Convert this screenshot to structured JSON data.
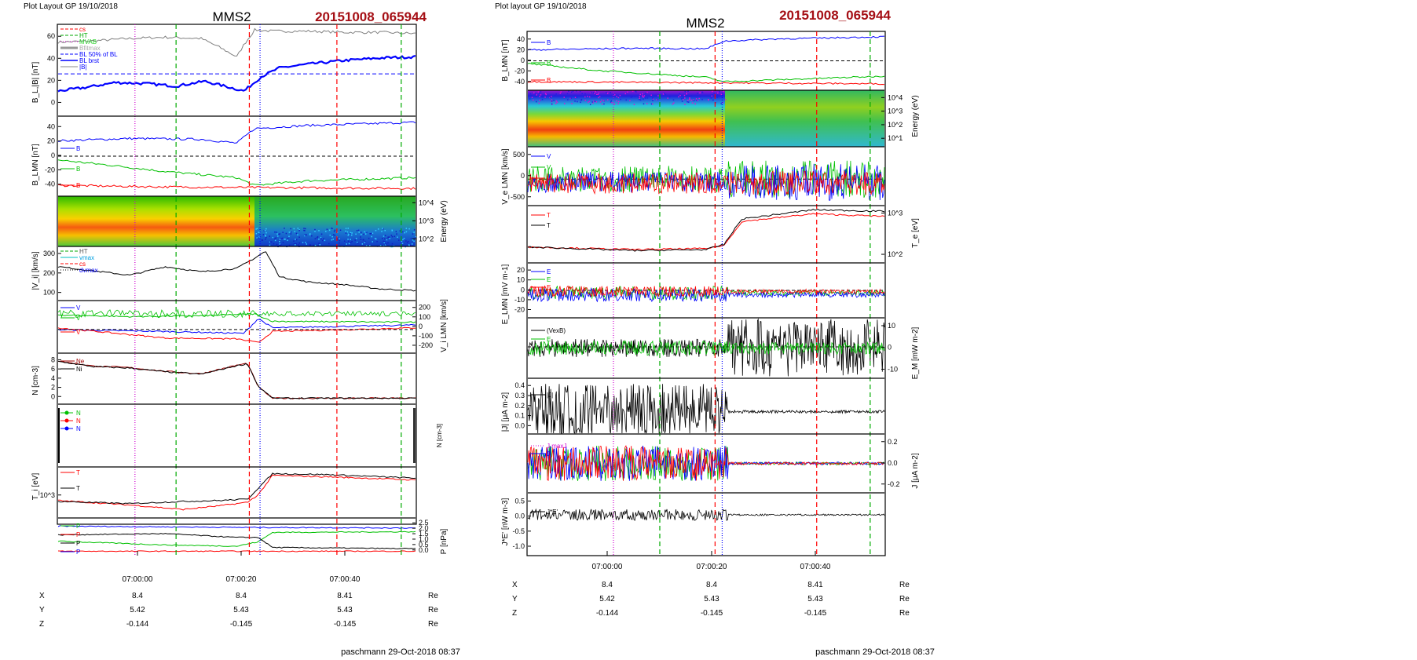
{
  "left_figure": {
    "header": "Plot Layout GP 19/10/2018",
    "spacecraft": "MMS2",
    "event_id": "20151008_065944",
    "footer": "paschmann 29-Oct-2018 08:37"
  },
  "right_figure": {
    "header": "Plot layout GP 19/10/2018",
    "spacecraft": "MMS2",
    "event_id": "20151008_065944",
    "footer": "paschmann 29-Oct-2018 08:37"
  },
  "colors": {
    "event_id": "#a50f15",
    "BL": "#0000ff",
    "BM": "#00c000",
    "BN": "#ff0000",
    "vlines": {
      "cs": "#ff0000",
      "HT": "#00aa00",
      "MVAB": "#d000d0",
      "blue": "#0000ff",
      "grey": "#999999"
    }
  },
  "time_axis": {
    "ticks": [
      "07:00:00",
      "07:00:20",
      "07:00:40"
    ]
  },
  "ephemeris": {
    "left": {
      "rows": [
        {
          "label": "X",
          "values": [
            "8.4",
            "8.4",
            "8.41"
          ],
          "unit": "Re"
        },
        {
          "label": "Y",
          "values": [
            "5.42",
            "5.43",
            "5.43"
          ],
          "unit": "Re"
        },
        {
          "label": "Z",
          "values": [
            "-0.144",
            "-0.145",
            "-0.145"
          ],
          "unit": "Re"
        }
      ]
    },
    "right": {
      "rows": [
        {
          "label": "X",
          "values": [
            "8.4",
            "8.4",
            "8.41"
          ],
          "unit": "Re"
        },
        {
          "label": "Y",
          "values": [
            "5.42",
            "5.43",
            "5.43"
          ],
          "unit": "Re"
        },
        {
          "label": "Z",
          "values": [
            "-0.144",
            "-0.145",
            "-0.145"
          ],
          "unit": "Re"
        }
      ]
    }
  },
  "chart_data": [
    {
      "figure": "left",
      "panel": "B_L |B|",
      "type": "line",
      "ylabel": "B_L,|B| [nT]",
      "yticks": [
        "0",
        "20",
        "40",
        "60"
      ],
      "ylim": [
        -2,
        68
      ],
      "legend": [
        "cs",
        "HT",
        "MVAB",
        "Bfitmax",
        "B_L 50% of BL",
        "BL brst",
        "|B|"
      ],
      "series": [
        {
          "name": "|B|",
          "color": "#808080",
          "x": [
            0,
            0.1,
            0.2,
            0.3,
            0.4,
            0.45,
            0.5,
            0.52,
            0.55,
            0.6,
            0.7,
            0.8,
            0.9,
            1.0
          ],
          "y": [
            56,
            57,
            59,
            60,
            59,
            52,
            44,
            54,
            66,
            65,
            65,
            64,
            64,
            63
          ]
        },
        {
          "name": "BL brst",
          "color": "#0000ff",
          "x": [
            0,
            0.08,
            0.16,
            0.25,
            0.33,
            0.41,
            0.48,
            0.52,
            0.57,
            0.62,
            0.7,
            0.8,
            0.9,
            1.0
          ],
          "y": [
            16,
            19,
            23,
            22,
            20,
            24,
            19,
            16,
            28,
            35,
            38,
            41,
            43,
            44
          ]
        }
      ],
      "reference_line": {
        "name": "50% of BL",
        "y": 30
      }
    },
    {
      "figure": "left",
      "panel": "B_LMN",
      "type": "line",
      "ylabel": "B_LMN [nT]",
      "yticks": [
        "-40",
        "-20",
        "0",
        "20",
        "40"
      ],
      "ylim": [
        -48,
        48
      ],
      "series": [
        {
          "name": "B_L",
          "color": "#0000ff",
          "x": [
            0,
            0.2,
            0.4,
            0.5,
            0.55,
            0.7,
            1.0
          ],
          "y": [
            20,
            23,
            22,
            17,
            36,
            40,
            44
          ]
        },
        {
          "name": "B_M",
          "color": "#00c000",
          "x": [
            0,
            0.15,
            0.3,
            0.5,
            0.55,
            0.7,
            1.0
          ],
          "y": [
            -5,
            -12,
            -20,
            -28,
            -38,
            -32,
            -28
          ]
        },
        {
          "name": "B_N",
          "color": "#ff0000",
          "x": [
            0,
            0.3,
            0.6,
            1.0
          ],
          "y": [
            -38,
            -40,
            -41,
            -42
          ]
        }
      ]
    },
    {
      "figure": "left",
      "panel": "ion spectrogram",
      "type": "heatmap",
      "ylabel": "Energy (eV)",
      "yticks": [
        "10^2",
        "10^3",
        "10^4"
      ],
      "transition_x": 0.55
    },
    {
      "figure": "left",
      "panel": "|V_i|",
      "type": "line",
      "ylabel": "|V_i| [km/s]",
      "yticks": [
        "100",
        "200",
        "300"
      ],
      "ylim": [
        20,
        300
      ],
      "legend": [
        "HT",
        "vmax",
        "cs",
        "dvmax"
      ],
      "series": [
        {
          "name": "|V_i|",
          "color": "#000000",
          "x": [
            0,
            0.1,
            0.2,
            0.3,
            0.4,
            0.5,
            0.55,
            0.58,
            0.62,
            0.7,
            0.8,
            0.9,
            1.0
          ],
          "y": [
            200,
            175,
            150,
            200,
            170,
            190,
            250,
            290,
            140,
            110,
            95,
            70,
            60
          ]
        }
      ]
    },
    {
      "figure": "left",
      "panel": "V_i LMN",
      "type": "line",
      "ylabel": "V_i LMN [km/s]",
      "yticks": [
        "-200",
        "-100",
        "0",
        "100",
        "200"
      ],
      "ylim": [
        -280,
        220
      ],
      "series": [
        {
          "name": "V_L",
          "color": "#0000ff",
          "x": [
            0,
            0.3,
            0.52,
            0.56,
            0.6,
            1.0
          ],
          "y": [
            -60,
            -80,
            -100,
            60,
            -40,
            -10
          ]
        },
        {
          "name": "V_M",
          "color": "#00c000",
          "x": [
            0,
            0.2,
            0.4,
            0.55,
            0.6,
            1.0
          ],
          "y": [
            100,
            80,
            90,
            110,
            30,
            20
          ]
        },
        {
          "name": "V_N",
          "color": "#ff0000",
          "x": [
            0,
            0.3,
            0.5,
            0.56,
            0.6,
            1.0
          ],
          "y": [
            -40,
            -150,
            -160,
            -200,
            -80,
            -40
          ]
        }
      ]
    },
    {
      "figure": "left",
      "panel": "N",
      "type": "line",
      "ylabel": "N [cm^-3]",
      "yticks": [
        "0",
        "2",
        "4",
        "6",
        "8"
      ],
      "ylim": [
        0,
        9.5
      ],
      "series": [
        {
          "name": "Ne",
          "color": "#a00000",
          "x": [
            0,
            0.1,
            0.2,
            0.3,
            0.4,
            0.5,
            0.53,
            0.56,
            0.6,
            1.0
          ],
          "y": [
            8.5,
            7.4,
            7.1,
            6.3,
            5.8,
            7.6,
            8.0,
            3.0,
            0.6,
            0.6
          ]
        },
        {
          "name": "Ni",
          "color": "#000000",
          "x": [
            0,
            0.1,
            0.2,
            0.3,
            0.4,
            0.5,
            0.53,
            0.56,
            0.6,
            1.0
          ],
          "y": [
            8.4,
            7.3,
            7.0,
            6.2,
            5.7,
            7.5,
            7.9,
            3.1,
            0.6,
            0.6
          ]
        }
      ]
    },
    {
      "figure": "left",
      "panel": "N markers",
      "type": "line",
      "legend": [
        "N",
        "N",
        "N"
      ],
      "yticks": [],
      "ylim": [
        0,
        1
      ]
    },
    {
      "figure": "left",
      "panel": "T_i",
      "type": "line",
      "ylabel": "T_i [eV]",
      "yticks": [
        "10^3"
      ],
      "ylim": [
        0,
        1
      ],
      "series": [
        {
          "name": "T_par",
          "color": "#ff0000",
          "x": [
            0,
            0.2,
            0.35,
            0.45,
            0.53,
            0.56,
            0.6,
            0.75,
            1.0
          ],
          "y": [
            0.32,
            0.22,
            0.12,
            0.2,
            0.28,
            0.45,
            0.88,
            0.85,
            0.78
          ]
        },
        {
          "name": "T_perp",
          "color": "#000000",
          "x": [
            0,
            0.2,
            0.35,
            0.45,
            0.53,
            0.56,
            0.6,
            0.75,
            1.0
          ],
          "y": [
            0.3,
            0.25,
            0.3,
            0.32,
            0.35,
            0.6,
            0.92,
            0.9,
            0.82
          ]
        }
      ]
    },
    {
      "figure": "left",
      "panel": "P",
      "type": "line",
      "ylabel": "P [nPa]",
      "yticks": [
        "0.0",
        "0.5",
        "1.0",
        "1.5",
        "2.0",
        "2.5"
      ],
      "ylim": [
        0,
        2.5
      ],
      "series": [
        {
          "name": "P_B",
          "color": "#00c000",
          "x": [
            0,
            0.3,
            0.5,
            0.56,
            0.6,
            1.0
          ],
          "y": [
            0.9,
            0.6,
            0.5,
            0.85,
            1.6,
            1.65
          ]
        },
        {
          "name": "P_i",
          "color": "#000000",
          "x": [
            0,
            0.3,
            0.5,
            0.56,
            0.6,
            1.0
          ],
          "y": [
            1.4,
            1.5,
            1.2,
            1.2,
            0.4,
            0.3
          ]
        },
        {
          "name": "P_tot",
          "color": "#0000ff",
          "x": [
            0,
            0.5,
            1.0
          ],
          "y": [
            2.1,
            2.0,
            1.95
          ]
        },
        {
          "name": "P_e",
          "color": "#ff0000",
          "x": [
            0,
            1.0
          ],
          "y": [
            0.1,
            0.1
          ]
        }
      ]
    },
    {
      "figure": "right",
      "panel": "B_LMN",
      "type": "line",
      "ylabel": "B_LMN [nT]",
      "yticks": [
        "-40",
        "-20",
        "0",
        "20",
        "40"
      ],
      "ylim": [
        -48,
        48
      ],
      "series": [
        {
          "name": "B_L",
          "color": "#0000ff",
          "x": [
            0,
            0.3,
            0.5,
            0.55,
            0.7,
            1.0
          ],
          "y": [
            20,
            23,
            22,
            36,
            40,
            44
          ]
        },
        {
          "name": "B_M",
          "color": "#00c000",
          "x": [
            0,
            0.2,
            0.5,
            0.55,
            1.0
          ],
          "y": [
            -5,
            -18,
            -30,
            -38,
            -28
          ]
        },
        {
          "name": "B_N",
          "color": "#ff0000",
          "x": [
            0,
            1.0
          ],
          "y": [
            -38,
            -42
          ]
        }
      ]
    },
    {
      "figure": "right",
      "panel": "electron spectrogram",
      "type": "heatmap",
      "ylabel": "Energy (eV)",
      "yticks": [
        "10^1",
        "10^2",
        "10^3",
        "10^4"
      ],
      "transition_x": 0.56
    },
    {
      "figure": "right",
      "panel": "V_e LMN",
      "type": "line",
      "ylabel": "V_e LMN [km/s]",
      "yticks": [
        "-500",
        "0",
        "500"
      ],
      "ylim": [
        -700,
        900
      ],
      "legend": [
        "V_L",
        "V_M",
        "V_N"
      ]
    },
    {
      "figure": "right",
      "panel": "T_e",
      "type": "line",
      "ylabel": "T_e [eV]",
      "yticks": [
        "10^2",
        "10^3"
      ],
      "ylim": [
        0,
        1
      ],
      "series": [
        {
          "name": "T_par",
          "color": "#ff0000",
          "x": [
            0,
            0.3,
            0.5,
            0.55,
            0.6,
            0.8,
            1.0
          ],
          "y": [
            0.25,
            0.2,
            0.22,
            0.28,
            0.75,
            0.9,
            0.85
          ]
        },
        {
          "name": "T_perp",
          "color": "#000000",
          "x": [
            0,
            0.3,
            0.5,
            0.55,
            0.6,
            0.8,
            1.0
          ],
          "y": [
            0.25,
            0.18,
            0.2,
            0.3,
            0.8,
            0.98,
            0.95
          ]
        }
      ]
    },
    {
      "figure": "right",
      "panel": "E_LMN",
      "type": "line",
      "ylabel": "E_LMN [mV m^-1]",
      "yticks": [
        "-20",
        "-10",
        "0",
        "10",
        "20"
      ],
      "ylim": [
        -24,
        28
      ],
      "legend": [
        "E_L",
        "E_M",
        "E_N"
      ]
    },
    {
      "figure": "right",
      "panel": "E_M",
      "type": "line",
      "ylabel": "E_M [mW m^-2]",
      "yticks": [
        "-10",
        "0",
        "10"
      ],
      "ylim": [
        -16,
        16
      ],
      "legend": [
        "(VexB)_M",
        "E_M"
      ]
    },
    {
      "figure": "right",
      "panel": "|J|",
      "type": "line",
      "ylabel": "|J| [μA m^-2]",
      "yticks": [
        "0.0",
        "0.1",
        "0.2",
        "0.3",
        "0.4"
      ],
      "ylim": [
        0,
        0.42
      ],
      "legend": [
        "|J|"
      ]
    },
    {
      "figure": "right",
      "panel": "J",
      "type": "line",
      "ylabel": "J [μA m^-2]",
      "yticks": [
        "-0.2",
        "0.0",
        "0.2"
      ],
      "ylim": [
        -0.32,
        0.32
      ],
      "legend": [
        "J_L maxJ",
        "J_L"
      ]
    },
    {
      "figure": "right",
      "panel": "J*E'",
      "type": "line",
      "ylabel": "J*E' [nW m^-3]",
      "yticks": [
        "-1.0",
        "-0.5",
        "0.0",
        "0.5"
      ],
      "ylim": [
        -1.25,
        0.65
      ],
      "legend": [
        "J*E'"
      ]
    }
  ],
  "legend_labels": {
    "left_p1": [
      "cs",
      "HT",
      "MVAB",
      "Bfitmax",
      "BL 50% of BL",
      "BL brst",
      "|B|"
    ],
    "left_p2": [
      "B",
      "B",
      "B"
    ],
    "left_p4": [
      "HT",
      "vmax",
      "cs",
      "dvmax"
    ],
    "left_p5": [
      "V",
      "V",
      "V"
    ],
    "left_p6": [
      "Ne",
      "Ni"
    ],
    "left_p7": [
      "N",
      "N",
      "N"
    ],
    "left_p8": [
      "T",
      "T"
    ],
    "left_p9": [
      "P",
      "P",
      "P",
      "P"
    ],
    "right_p1": [
      "B",
      "B",
      "B"
    ],
    "right_p3": [
      "V",
      "V",
      "V"
    ],
    "right_p4": [
      "T",
      "T"
    ],
    "right_p5": [
      "E",
      "E",
      "E"
    ],
    "right_p6": [
      "(VexB)",
      "E"
    ],
    "right_p7": [
      "|J|"
    ],
    "right_p8": [
      "J maxJ",
      "J"
    ],
    "right_p9": [
      "J*E'"
    ]
  },
  "axis_labels": {
    "left": [
      "B_L,|B| [nT]",
      "B_LMN [nT]",
      "Energy (eV)",
      "|V_i| [km/s]",
      "V_i LMN [km/s]",
      "N [cm-3]",
      "T_i [eV]",
      "P [nPa]",
      "N [cm-3]"
    ],
    "right": [
      "B_LMN [nT]",
      "Energy (eV)",
      "V_e LMN [km/s]",
      "T_e [eV]",
      "E_LMN [mV m-1]",
      "E_M [mW m-2]",
      "|J| [μA m-2]",
      "J [μA m-2]",
      "J*E' [nW m-3]"
    ]
  }
}
